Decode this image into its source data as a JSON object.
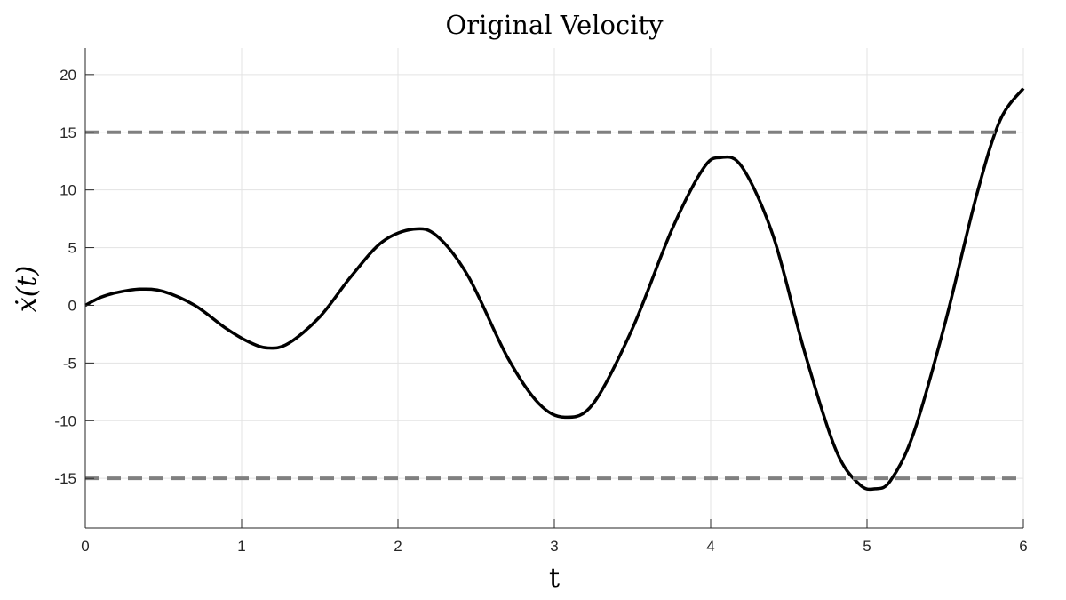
{
  "chart_data": {
    "type": "line",
    "title": "Original Velocity",
    "xlabel": "t",
    "ylabel": "ẋ(t)",
    "xlim": [
      0,
      6
    ],
    "ylim": [
      -19.3,
      22.3
    ],
    "xticks": [
      0,
      1,
      2,
      3,
      4,
      5,
      6
    ],
    "yticks": [
      -15,
      -10,
      -5,
      0,
      5,
      10,
      15,
      20
    ],
    "xtick_labels": [
      "0",
      "1",
      "2",
      "3",
      "4",
      "5",
      "6"
    ],
    "ytick_labels": [
      "-15",
      "-10",
      "-5",
      "0",
      "5",
      "10",
      "15",
      "20"
    ],
    "grid": true,
    "series": [
      {
        "style": "solid",
        "color": "#000000",
        "x": [
          0,
          0.1,
          0.2,
          0.35,
          0.5,
          0.7,
          0.9,
          1.05,
          1.17,
          1.3,
          1.5,
          1.7,
          1.9,
          2.1,
          2.25,
          2.45,
          2.7,
          2.9,
          3.07,
          3.25,
          3.5,
          3.75,
          3.95,
          4.06,
          4.2,
          4.4,
          4.6,
          4.8,
          4.95,
          5.05,
          5.15,
          5.3,
          5.5,
          5.7,
          5.85,
          6.0
        ],
        "y": [
          0,
          0.7,
          1.1,
          1.4,
          1.2,
          0,
          -2.0,
          -3.2,
          -3.7,
          -3.3,
          -1.0,
          2.5,
          5.5,
          6.6,
          6.0,
          2.5,
          -4.5,
          -8.5,
          -9.7,
          -8.5,
          -2.0,
          6.5,
          11.8,
          12.8,
          12.0,
          6.0,
          -4.0,
          -12.5,
          -15.5,
          -15.9,
          -15.2,
          -11.0,
          -1.5,
          9.5,
          16.0,
          18.8
        ]
      },
      {
        "style": "dashed",
        "color": "#808080",
        "x": [
          0,
          6
        ],
        "y": [
          15,
          15
        ]
      },
      {
        "style": "dashed",
        "color": "#808080",
        "x": [
          0,
          6
        ],
        "y": [
          -15,
          -15
        ]
      }
    ]
  }
}
